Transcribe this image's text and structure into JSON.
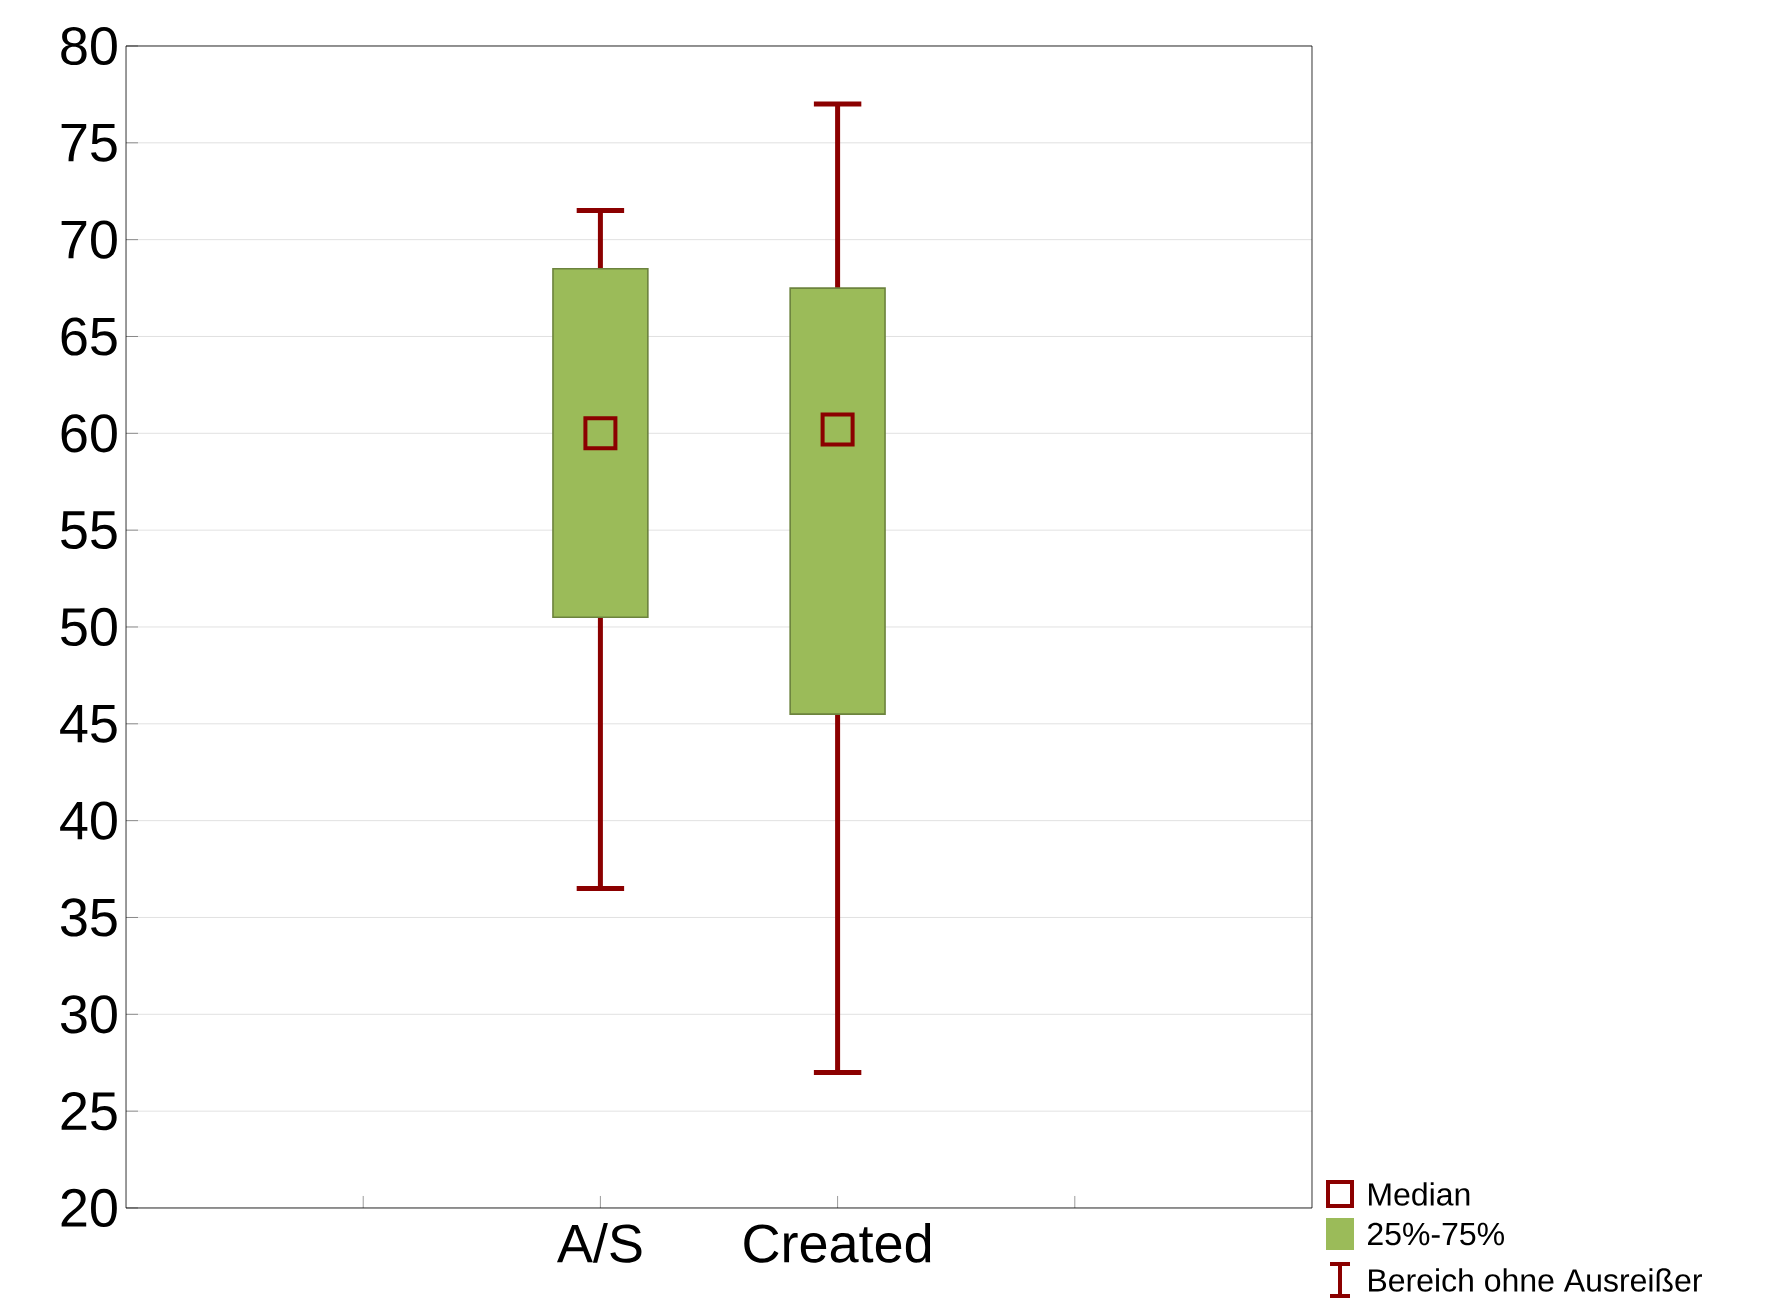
{
  "chart_data": {
    "type": "box",
    "categories": [
      "A/S",
      "Created"
    ],
    "series": [
      {
        "name": "25%-75%",
        "color": "#9bbb59",
        "boxes": [
          {
            "low": 36.5,
            "q1": 50.5,
            "median": 60,
            "q3": 68.5,
            "high": 71.5
          },
          {
            "low": 27,
            "q1": 45.5,
            "median": 60.2,
            "q3": 67.5,
            "high": 77
          }
        ]
      }
    ],
    "colors": [
      "#8b0000",
      "#9bbb59",
      "#8b0000"
    ],
    "annotations": [
      "Median",
      "Bereich ohne Ausreißer"
    ],
    "ylim": [
      20,
      80
    ],
    "yticks": [
      20,
      25,
      30,
      35,
      40,
      45,
      50,
      55,
      60,
      65,
      70,
      75,
      80
    ],
    "grid": "y",
    "legend": "bottom right",
    "marker": "square"
  }
}
